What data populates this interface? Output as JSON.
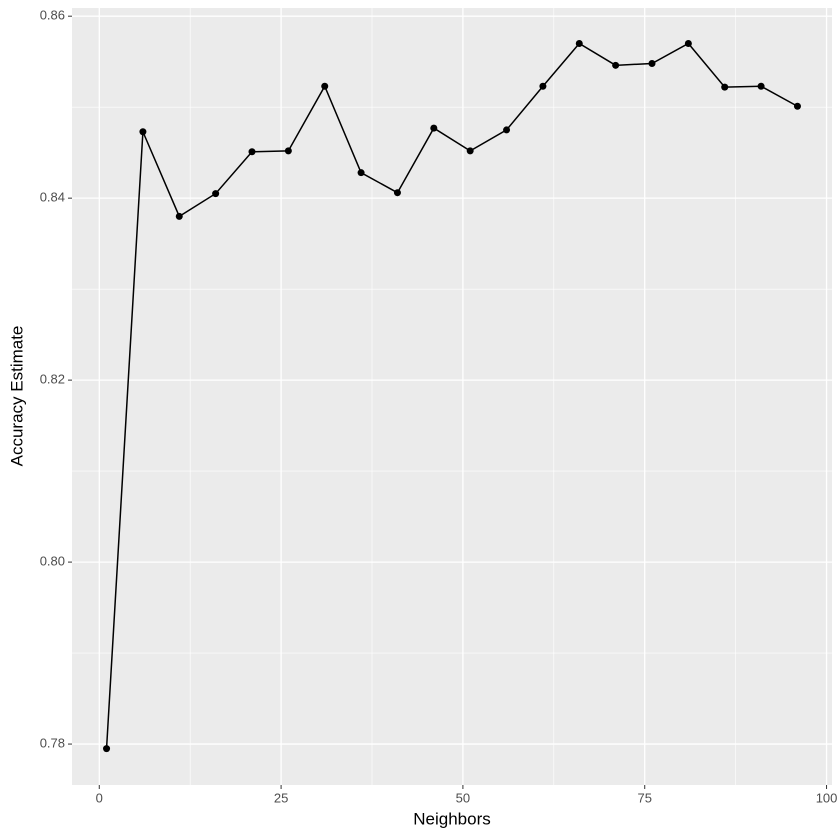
{
  "chart_data": {
    "type": "line",
    "x_label": "Neighbors",
    "y_label": "Accuracy Estimate",
    "x": [
      1,
      6,
      11,
      16,
      21,
      26,
      31,
      36,
      41,
      46,
      51,
      56,
      61,
      66,
      71,
      76,
      81,
      86,
      91,
      96
    ],
    "series": [
      {
        "color": "#000000",
        "values": [
          0.7795,
          0.8473,
          0.838,
          0.8405,
          0.8451,
          0.8452,
          0.8523,
          0.8428,
          0.8406,
          0.8477,
          0.8452,
          0.8475,
          0.8523,
          0.857,
          0.8546,
          0.8548,
          0.857,
          0.8522,
          0.8523,
          0.8501
        ]
      }
    ],
    "xlim": [
      -3.75,
      100.75
    ],
    "xticks": [
      0,
      25,
      50,
      75,
      100
    ],
    "ylim": [
      0.7755,
      0.8609
    ],
    "yticks": [
      {
        "value": 0.78,
        "label": "0.78"
      },
      {
        "value": 0.8,
        "label": "0.80"
      },
      {
        "value": 0.82,
        "label": "0.82"
      },
      {
        "value": 0.84,
        "label": "0.84"
      },
      {
        "value": 0.86,
        "label": "0.86"
      }
    ],
    "grid": true,
    "markers": true
  }
}
